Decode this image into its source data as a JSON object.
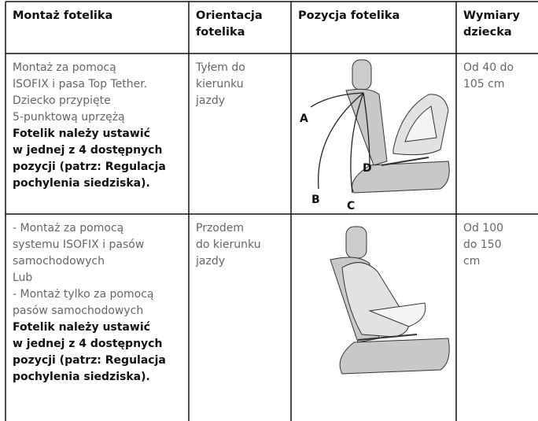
{
  "table": {
    "header": [
      [
        "Montaż fotelika"
      ],
      [
        "Orientacja",
        "fotelika"
      ],
      [
        "Pozycja fotelika"
      ],
      [
        "Wymiary",
        "dziecka"
      ]
    ],
    "rows": [
      {
        "mounting": {
          "lines": [
            "Montaż za pomocą",
            "ISOFIX i pasa Top Tether.",
            "Dziecko przypięte",
            "5-punktową uprzężą"
          ],
          "bold_lines": [
            "Fotelik należy ustawić",
            "w jednej z 4 dostępnych",
            "pozycji (patrz: Regulacja",
            "pochylenia siedziska)."
          ]
        },
        "orientation": [
          "Tyłem do",
          "kierunku",
          "jazdy"
        ],
        "position_labels": [
          "A",
          "B",
          "C",
          "D"
        ],
        "size": [
          "Od 40 do",
          "105 cm"
        ]
      },
      {
        "mounting": {
          "lines": [
            "- Montaż za pomocą",
            "systemu ISOFIX i pasów",
            "samochodowych",
            "Lub",
            "- Montaż tylko za pomocą",
            "pasów samochodowych"
          ],
          "bold_lines": [
            "Fotelik należy ustawić",
            "w jednej z 4 dostępnych",
            "pozycji (patrz: Regulacja",
            "pochylenia siedziska)."
          ]
        },
        "orientation": [
          "Przodem",
          "do kierunku",
          "jazdy"
        ],
        "size": [
          "Od 100",
          "do 150",
          "cm"
        ]
      }
    ]
  }
}
